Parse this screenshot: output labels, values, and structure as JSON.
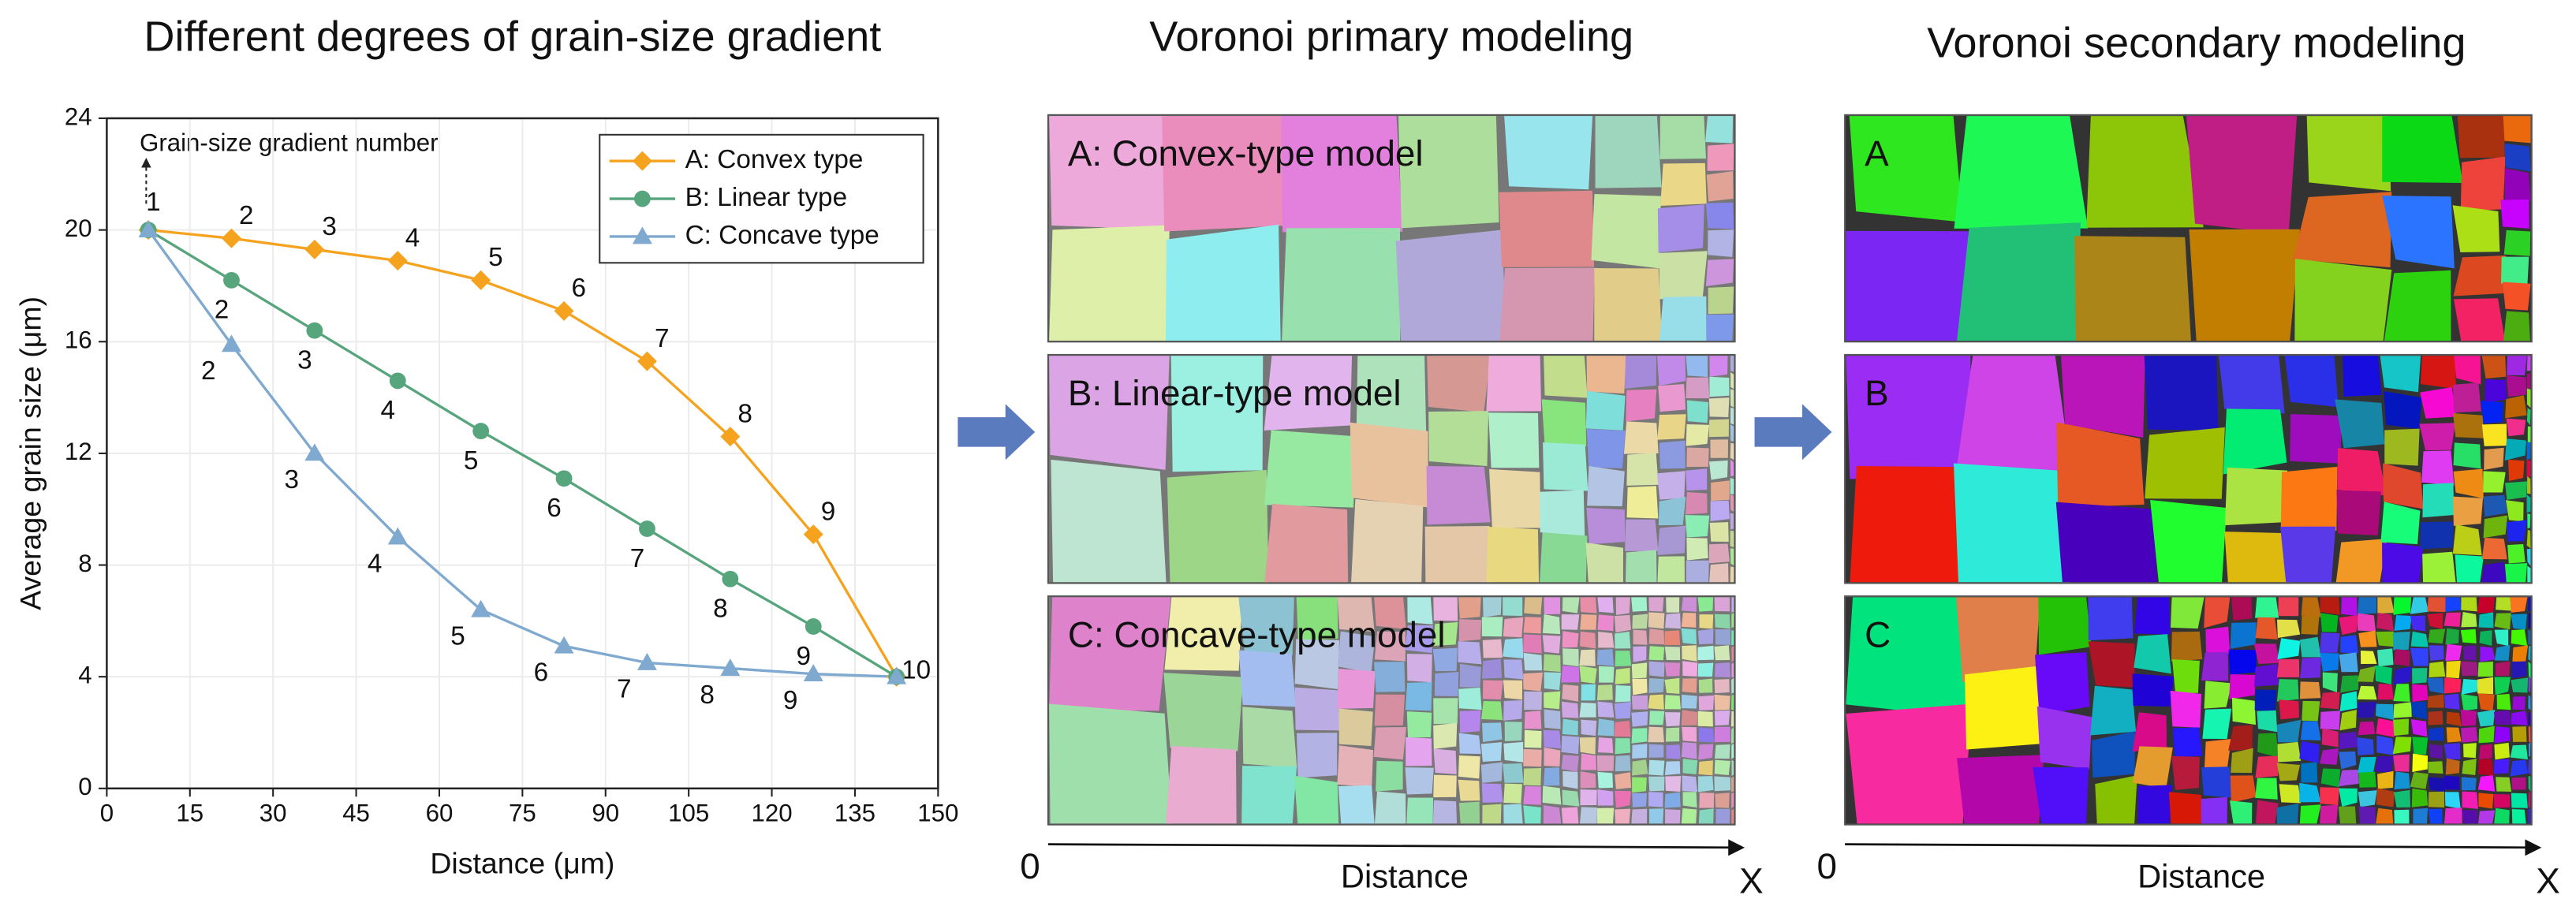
{
  "chart_data": {
    "type": "line",
    "title": "Different degrees of grain-size gradient",
    "xlabel": "Distance (μm)",
    "ylabel": "Average grain size (μm)",
    "annotation": "Grain-size gradient number",
    "point_labels": [
      "1",
      "2",
      "3",
      "4",
      "5",
      "6",
      "7",
      "8",
      "9",
      "10"
    ],
    "x": [
      7.5,
      22.5,
      37.5,
      52.5,
      67.5,
      82.5,
      97.5,
      112.5,
      127.5,
      142.5
    ],
    "series": [
      {
        "name": "A: Convex type",
        "color": "#f5a31f",
        "marker": "diamond",
        "values": [
          20,
          19.7,
          19.3,
          18.9,
          18.2,
          17.1,
          15.3,
          12.6,
          9.1,
          4
        ]
      },
      {
        "name": "B: Linear type",
        "color": "#57a57c",
        "marker": "circle",
        "values": [
          20,
          18.2,
          16.4,
          14.6,
          12.8,
          11.1,
          9.3,
          7.5,
          5.8,
          4
        ]
      },
      {
        "name": "C: Concave type",
        "color": "#7fa9cf",
        "marker": "triangle",
        "values": [
          20,
          15.9,
          12,
          9,
          6.4,
          5.1,
          4.5,
          4.3,
          4.1,
          4
        ]
      }
    ],
    "xlim": [
      0,
      150
    ],
    "ylim": [
      0,
      24
    ],
    "xticks": [
      0,
      15,
      30,
      45,
      60,
      75,
      90,
      105,
      120,
      135,
      150
    ],
    "yticks": [
      0,
      4,
      8,
      12,
      16,
      20,
      24
    ],
    "grid": true,
    "legend": "upper right"
  },
  "panels": [
    {
      "title": "Voronoi primary modeling",
      "labels": [
        "A: Convex-type model",
        "B: Linear-type model",
        "C: Concave-type model"
      ],
      "origin": "0",
      "axis_label": "Distance",
      "axis_end": "X"
    },
    {
      "title": "Voronoi secondary modeling",
      "labels": [
        "A",
        "B",
        "C"
      ],
      "origin": "0",
      "axis_label": "Distance",
      "axis_end": "X"
    }
  ]
}
